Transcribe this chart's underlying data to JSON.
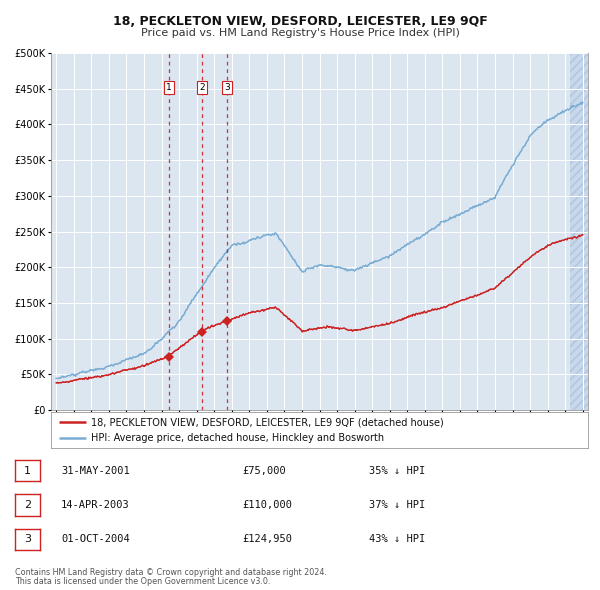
{
  "title": "18, PECKLETON VIEW, DESFORD, LEICESTER, LE9 9QF",
  "subtitle": "Price paid vs. HM Land Registry's House Price Index (HPI)",
  "property_label": "18, PECKLETON VIEW, DESFORD, LEICESTER, LE9 9QF (detached house)",
  "hpi_label": "HPI: Average price, detached house, Hinckley and Bosworth",
  "footer1": "Contains HM Land Registry data © Crown copyright and database right 2024.",
  "footer2": "This data is licensed under the Open Government Licence v3.0.",
  "sales": [
    {
      "num": 1,
      "date_num": 2001.42,
      "price": 75000,
      "label": "31-MAY-2001",
      "price_str": "£75,000",
      "pct": "35% ↓ HPI"
    },
    {
      "num": 2,
      "date_num": 2003.29,
      "price": 110000,
      "label": "14-APR-2003",
      "price_str": "£110,000",
      "pct": "37% ↓ HPI"
    },
    {
      "num": 3,
      "date_num": 2004.75,
      "price": 124950,
      "label": "01-OCT-2004",
      "price_str": "£124,950",
      "pct": "43% ↓ HPI"
    }
  ],
  "ylim": [
    0,
    500000
  ],
  "yticks": [
    0,
    50000,
    100000,
    150000,
    200000,
    250000,
    300000,
    350000,
    400000,
    450000,
    500000
  ],
  "xlim_start": 1994.7,
  "xlim_end": 2025.3,
  "property_color": "#cc2222",
  "hpi_color": "#7aadd4",
  "plot_bg_color": "#dce6f1",
  "grid_color": "#ffffff",
  "border_color": "#999999",
  "sale_line_color": "#cc2222",
  "fig_bg_color": "#ffffff",
  "hatch_start": 2024.3
}
